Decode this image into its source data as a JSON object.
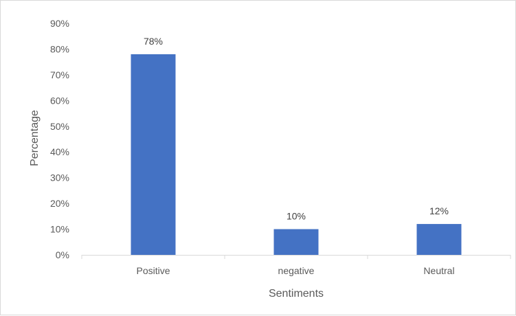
{
  "chart_data": {
    "type": "bar",
    "categories": [
      "Positive",
      "negative",
      "Neutral"
    ],
    "values": [
      78,
      10,
      12
    ],
    "data_labels": [
      "78%",
      "10%",
      "12%"
    ],
    "xlabel": "Sentiments",
    "ylabel": "Percentage",
    "ylim": [
      0,
      90
    ],
    "yticks": [
      0,
      10,
      20,
      30,
      40,
      50,
      60,
      70,
      80,
      90
    ],
    "ytick_labels": [
      "0%",
      "10%",
      "20%",
      "30%",
      "40%",
      "50%",
      "60%",
      "70%",
      "80%",
      "90%"
    ],
    "grid": false,
    "legend": "none",
    "bar_color": "#4472c4"
  }
}
